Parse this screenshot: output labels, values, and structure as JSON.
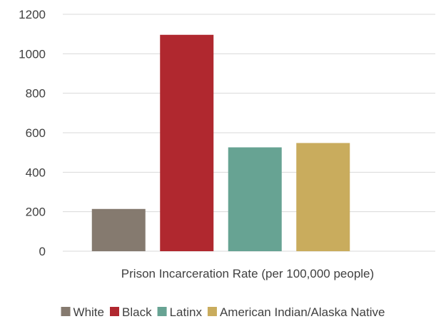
{
  "chart_data": {
    "type": "bar",
    "categories": [
      "White",
      "Black",
      "Latinx",
      "American Indian/Alaska Native"
    ],
    "values": [
      214,
      1096,
      526,
      548
    ],
    "colors": [
      "#857a6f",
      "#b0282f",
      "#67a393",
      "#c9ac5d"
    ],
    "title": "",
    "xlabel": "Prison Incarceration Rate (per 100,000 people)",
    "ylabel": "",
    "ylim": [
      0,
      1200
    ],
    "yticks": [
      0,
      200,
      400,
      600,
      800,
      1000,
      1200
    ],
    "grid": true,
    "legend": "bottom"
  }
}
